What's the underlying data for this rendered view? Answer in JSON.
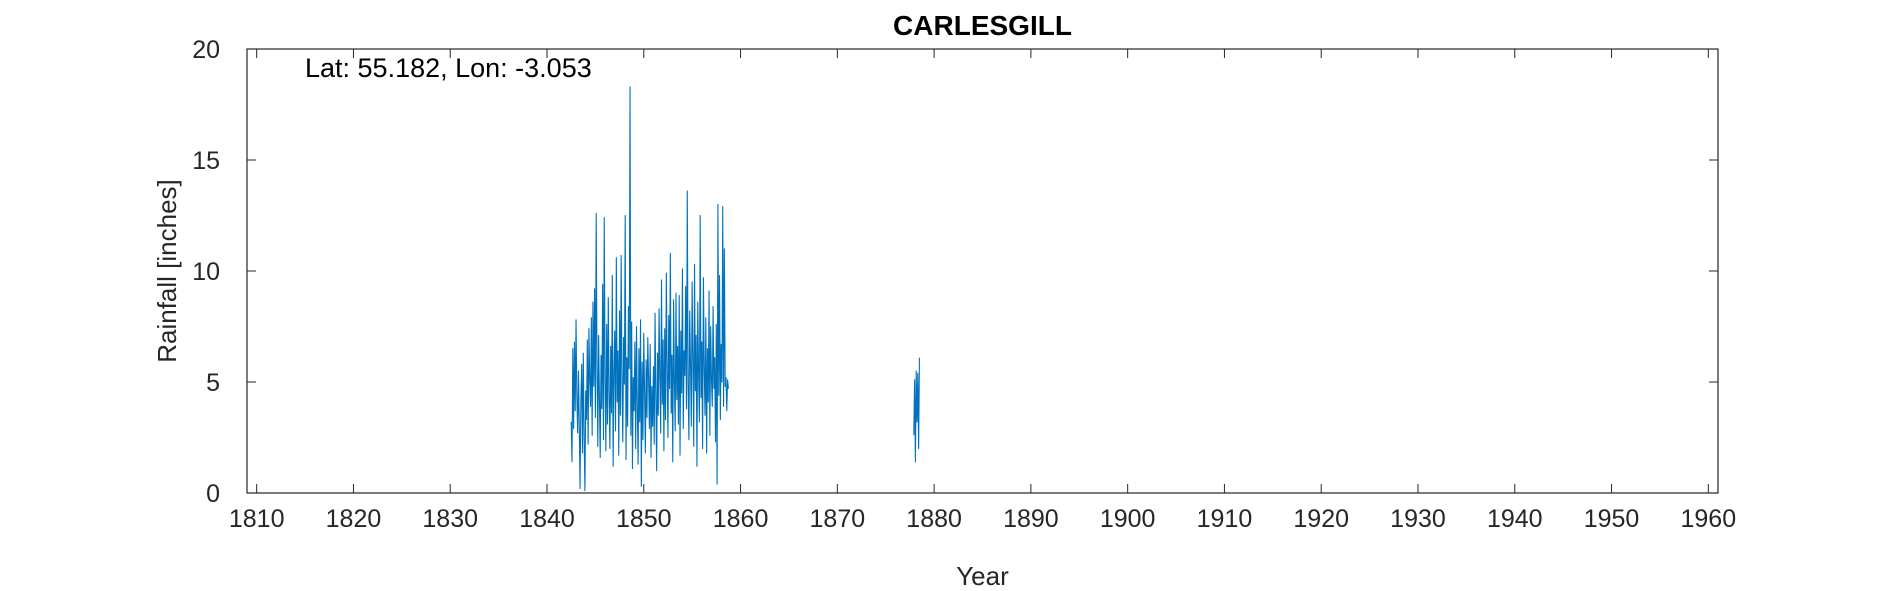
{
  "chart_data": {
    "type": "line",
    "title": "CARLESGILL",
    "xlabel": "Year",
    "ylabel": "Rainfall [inches]",
    "xlim": [
      1809,
      1961
    ],
    "ylim": [
      0,
      20
    ],
    "xticks": [
      1810,
      1820,
      1830,
      1840,
      1850,
      1860,
      1870,
      1880,
      1890,
      1900,
      1910,
      1920,
      1930,
      1940,
      1950,
      1960
    ],
    "yticks": [
      0,
      5,
      10,
      15,
      20
    ],
    "grid": false,
    "annotation": "Lat: 55.182, Lon: -3.053",
    "line_color": "#0072BD",
    "series": [
      {
        "segments": [
          {
            "start": 1842.5,
            "step": 0.0833,
            "values": [
              3.2,
              1.4,
              6.5,
              2.9,
              6.8,
              3.7,
              7.8,
              4.4,
              2.7,
              5.5,
              3.0,
              0.2,
              4.2,
              5.8,
              1.8,
              6.3,
              2.5,
              0.1,
              4.6,
              3.3,
              6.9,
              2.2,
              7.4,
              5.1,
              3.9,
              7.9,
              2.6,
              8.6,
              4.8,
              9.2,
              3.4,
              12.6,
              5.9,
              2.1,
              7.1,
              4.3,
              1.6,
              6.2,
              3.8,
              9.4,
              2.4,
              12.4,
              5.3,
              1.9,
              7.6,
              3.1,
              8.8,
              4.5,
              2.0,
              6.6,
              3.6,
              9.8,
              1.2,
              5.4,
              7.3,
              2.8,
              10.6,
              4.1,
              6.4,
              1.7,
              8.2,
              3.5,
              10.7,
              5.0,
              2.3,
              7.0,
              4.9,
              12.5,
              1.5,
              6.1,
              3.0,
              8.4,
              5.6,
              18.3,
              2.6,
              7.7,
              1.1,
              5.2,
              3.7,
              6.8,
              2.0,
              7.5,
              4.0,
              1.3,
              6.5,
              3.2,
              7.8,
              0.3,
              5.9,
              2.4,
              7.2,
              4.6,
              1.8,
              6.0,
              3.4,
              7.0,
              5.1,
              2.9,
              6.7,
              1.6,
              4.8,
              3.0,
              5.7,
              2.2,
              8.1,
              4.4,
              1.0,
              6.3,
              3.5,
              8.3,
              5.2,
              2.7,
              9.6,
              4.0,
              6.9,
              1.9,
              7.4,
              3.3,
              9.9,
              5.5,
              2.5,
              8.0,
              4.7,
              10.8,
              3.6,
              6.2,
              1.4,
              8.7,
              5.0,
              2.8,
              9.0,
              4.2,
              6.6,
              3.1,
              8.9,
              1.7,
              7.3,
              4.5,
              10.1,
              2.9,
              6.4,
              5.3,
              9.3,
              3.8,
              13.6,
              4.9,
              2.4,
              8.2,
              5.8,
              3.0,
              9.5,
              6.0,
              2.1,
              10.3,
              4.6,
              7.1,
              1.2,
              8.6,
              5.4,
              3.2,
              12.5,
              4.3,
              6.8,
              2.0,
              9.7,
              5.7,
              3.5,
              7.9,
              1.8,
              6.5,
              4.1,
              9.1,
              2.6,
              7.5,
              5.1,
              3.9,
              8.4,
              4.7,
              6.1,
              2.3,
              7.6,
              0.4,
              13.0,
              4.4,
              9.8,
              3.3,
              6.7,
              5.0,
              12.9,
              3.9,
              11.0,
              4.8,
              5.2,
              3.7,
              5.1,
              4.7
            ]
          },
          {
            "start": 1877.9,
            "step": 0.0833,
            "values": [
              2.6,
              5.1,
              1.4,
              5.5,
              3.2,
              5.4,
              2.0,
              6.1
            ]
          }
        ]
      }
    ]
  }
}
